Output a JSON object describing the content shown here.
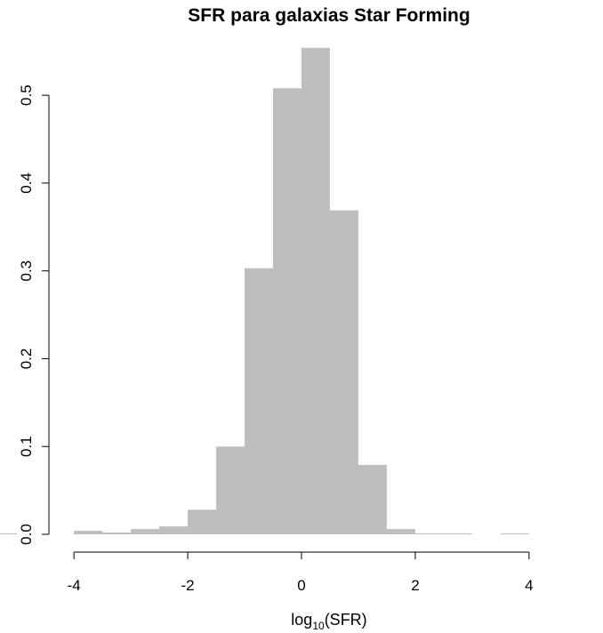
{
  "chart_data": {
    "type": "bar",
    "title": "SFR para galaxias Star Forming",
    "xlabel": {
      "prefix": "log",
      "subscript": "10",
      "suffix": "(SFR)"
    },
    "ylabel": "",
    "bin_edges": [
      -5.5,
      -5.0,
      -4.5,
      -4.0,
      -3.5,
      -3.0,
      -2.5,
      -2.0,
      -1.5,
      -1.0,
      -0.5,
      0.0,
      0.5,
      1.0,
      1.5,
      2.0,
      2.5,
      3.0,
      3.5,
      4.0,
      4.5,
      5.0,
      5.5
    ],
    "values": [
      0.001,
      0.0,
      0.0,
      0.004,
      0.002,
      0.006,
      0.009,
      0.028,
      0.1,
      0.303,
      0.508,
      0.554,
      0.369,
      0.079,
      0.006,
      0.001,
      0.001,
      0.0,
      0.001,
      0.0,
      0.0,
      0.0
    ],
    "bar_color": "#bebebe",
    "xlim": [
      -5.3,
      5.3
    ],
    "ylim": [
      0,
      0.57
    ],
    "xticks": [
      "-4",
      "-2",
      "0",
      "2",
      "4"
    ],
    "xtick_values": [
      -4,
      -2,
      0,
      2,
      4
    ],
    "yticks": [
      "0.0",
      "0.1",
      "0.2",
      "0.3",
      "0.4",
      "0.5"
    ],
    "ytick_values": [
      0.0,
      0.1,
      0.2,
      0.3,
      0.4,
      0.5
    ],
    "grid": false,
    "legend": "none"
  }
}
